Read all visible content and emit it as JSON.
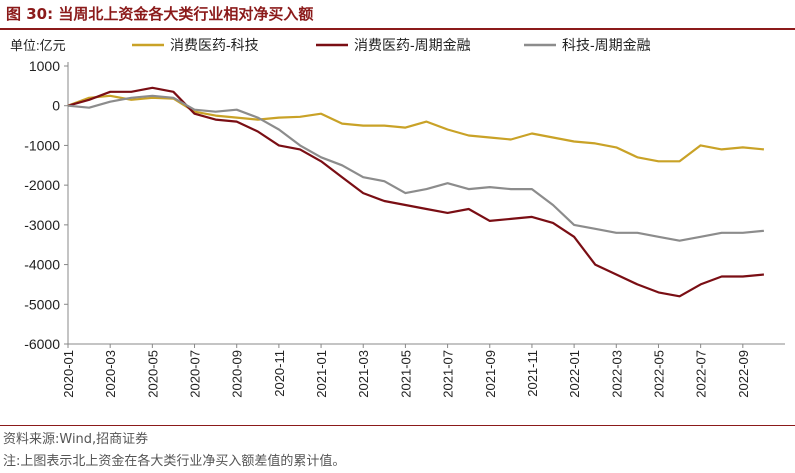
{
  "header": {
    "title": "图 30:  当周北上资金各大类行业相对净买入额"
  },
  "footer": {
    "source": "资料来源:Wind,招商证券",
    "note": "注:上图表示北上资金在各大类行业净买入额差值的累计值。"
  },
  "colors": {
    "accent": "#8B1A1A"
  },
  "chart_data": {
    "type": "line",
    "unit_label": "单位:亿元",
    "ylim": [
      -6000,
      1000
    ],
    "yticks": [
      1000,
      0,
      -1000,
      -2000,
      -3000,
      -4000,
      -5000,
      -6000
    ],
    "xlim": [
      "2020-01",
      "2022-11"
    ],
    "xticks": [
      "2020-01",
      "2020-03",
      "2020-05",
      "2020-07",
      "2020-09",
      "2020-11",
      "2021-01",
      "2021-03",
      "2021-05",
      "2021-07",
      "2021-09",
      "2021-11",
      "2022-01",
      "2022-03",
      "2022-05",
      "2022-07",
      "2022-09"
    ],
    "grid": false,
    "legend_position": "top",
    "series": [
      {
        "name": "消费医药-科技",
        "color": "#C9A227",
        "points": [
          [
            "2020-01",
            0
          ],
          [
            "2020-02",
            200
          ],
          [
            "2020-03",
            250
          ],
          [
            "2020-04",
            150
          ],
          [
            "2020-05",
            200
          ],
          [
            "2020-06",
            180
          ],
          [
            "2020-07",
            -150
          ],
          [
            "2020-08",
            -250
          ],
          [
            "2020-09",
            -300
          ],
          [
            "2020-10",
            -350
          ],
          [
            "2020-11",
            -300
          ],
          [
            "2020-12",
            -280
          ],
          [
            "2021-01",
            -200
          ],
          [
            "2021-02",
            -450
          ],
          [
            "2021-03",
            -500
          ],
          [
            "2021-04",
            -500
          ],
          [
            "2021-05",
            -550
          ],
          [
            "2021-06",
            -400
          ],
          [
            "2021-07",
            -600
          ],
          [
            "2021-08",
            -750
          ],
          [
            "2021-09",
            -800
          ],
          [
            "2021-10",
            -850
          ],
          [
            "2021-11",
            -700
          ],
          [
            "2021-12",
            -800
          ],
          [
            "2022-01",
            -900
          ],
          [
            "2022-02",
            -950
          ],
          [
            "2022-03",
            -1050
          ],
          [
            "2022-04",
            -1300
          ],
          [
            "2022-05",
            -1400
          ],
          [
            "2022-06",
            -1400
          ],
          [
            "2022-07",
            -1000
          ],
          [
            "2022-08",
            -1100
          ],
          [
            "2022-09",
            -1050
          ],
          [
            "2022-10",
            -1100
          ]
        ]
      },
      {
        "name": "消费医药-周期金融",
        "color": "#7A0E14",
        "points": [
          [
            "2020-01",
            0
          ],
          [
            "2020-02",
            150
          ],
          [
            "2020-03",
            350
          ],
          [
            "2020-04",
            350
          ],
          [
            "2020-05",
            450
          ],
          [
            "2020-06",
            350
          ],
          [
            "2020-07",
            -200
          ],
          [
            "2020-08",
            -350
          ],
          [
            "2020-09",
            -400
          ],
          [
            "2020-10",
            -650
          ],
          [
            "2020-11",
            -1000
          ],
          [
            "2020-12",
            -1100
          ],
          [
            "2021-01",
            -1400
          ],
          [
            "2021-02",
            -1800
          ],
          [
            "2021-03",
            -2200
          ],
          [
            "2021-04",
            -2400
          ],
          [
            "2021-05",
            -2500
          ],
          [
            "2021-06",
            -2600
          ],
          [
            "2021-07",
            -2700
          ],
          [
            "2021-08",
            -2600
          ],
          [
            "2021-09",
            -2900
          ],
          [
            "2021-10",
            -2850
          ],
          [
            "2021-11",
            -2800
          ],
          [
            "2021-12",
            -2950
          ],
          [
            "2022-01",
            -3300
          ],
          [
            "2022-02",
            -4000
          ],
          [
            "2022-03",
            -4250
          ],
          [
            "2022-04",
            -4500
          ],
          [
            "2022-05",
            -4700
          ],
          [
            "2022-06",
            -4800
          ],
          [
            "2022-07",
            -4500
          ],
          [
            "2022-08",
            -4300
          ],
          [
            "2022-09",
            -4300
          ],
          [
            "2022-10",
            -4250
          ]
        ]
      },
      {
        "name": "科技-周期金融",
        "color": "#8C8C8C",
        "points": [
          [
            "2020-01",
            0
          ],
          [
            "2020-02",
            -50
          ],
          [
            "2020-03",
            100
          ],
          [
            "2020-04",
            200
          ],
          [
            "2020-05",
            250
          ],
          [
            "2020-06",
            200
          ],
          [
            "2020-07",
            -100
          ],
          [
            "2020-08",
            -150
          ],
          [
            "2020-09",
            -100
          ],
          [
            "2020-10",
            -300
          ],
          [
            "2020-11",
            -600
          ],
          [
            "2020-12",
            -1000
          ],
          [
            "2021-01",
            -1300
          ],
          [
            "2021-02",
            -1500
          ],
          [
            "2021-03",
            -1800
          ],
          [
            "2021-04",
            -1900
          ],
          [
            "2021-05",
            -2200
          ],
          [
            "2021-06",
            -2100
          ],
          [
            "2021-07",
            -1950
          ],
          [
            "2021-08",
            -2100
          ],
          [
            "2021-09",
            -2050
          ],
          [
            "2021-10",
            -2100
          ],
          [
            "2021-11",
            -2100
          ],
          [
            "2021-12",
            -2500
          ],
          [
            "2022-01",
            -3000
          ],
          [
            "2022-02",
            -3100
          ],
          [
            "2022-03",
            -3200
          ],
          [
            "2022-04",
            -3200
          ],
          [
            "2022-05",
            -3300
          ],
          [
            "2022-06",
            -3400
          ],
          [
            "2022-07",
            -3300
          ],
          [
            "2022-08",
            -3200
          ],
          [
            "2022-09",
            -3200
          ],
          [
            "2022-10",
            -3150
          ]
        ]
      }
    ]
  }
}
